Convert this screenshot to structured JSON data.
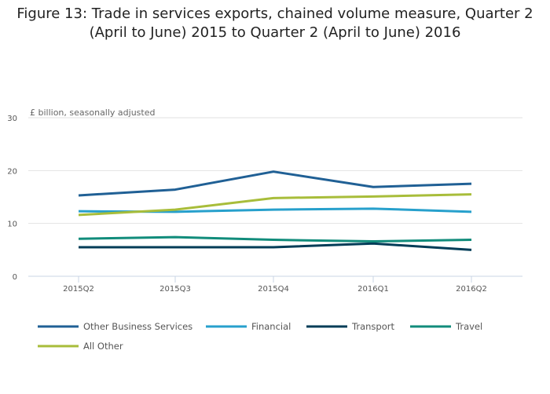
{
  "chart_data": {
    "type": "line",
    "title": "Figure 13: Trade in services exports, chained volume measure, Quarter 2 (April to June) 2015 to Quarter 2 (April to June) 2016",
    "ylabel": "£ billion, seasonally adjusted",
    "xlabel": "",
    "categories": [
      "2015Q2",
      "2015Q3",
      "2015Q4",
      "2016Q1",
      "2016Q2"
    ],
    "ylim": [
      0,
      30
    ],
    "yticks": [
      0,
      10,
      20,
      30
    ],
    "grid": true,
    "legend_position": "bottom",
    "series": [
      {
        "name": "Other Business Services",
        "color": "#206095",
        "values": [
          15.3,
          16.4,
          19.8,
          16.9,
          17.5
        ]
      },
      {
        "name": "Financial",
        "color": "#27a0cc",
        "values": [
          12.3,
          12.2,
          12.6,
          12.8,
          12.2
        ]
      },
      {
        "name": "Transport",
        "color": "#003c57",
        "values": [
          5.5,
          5.5,
          5.5,
          6.2,
          5.0
        ]
      },
      {
        "name": "Travel",
        "color": "#118c7b",
        "values": [
          7.1,
          7.4,
          6.9,
          6.6,
          6.9
        ]
      },
      {
        "name": "All Other",
        "color": "#a8bd3a",
        "values": [
          11.6,
          12.6,
          14.8,
          15.1,
          15.5
        ]
      }
    ]
  }
}
